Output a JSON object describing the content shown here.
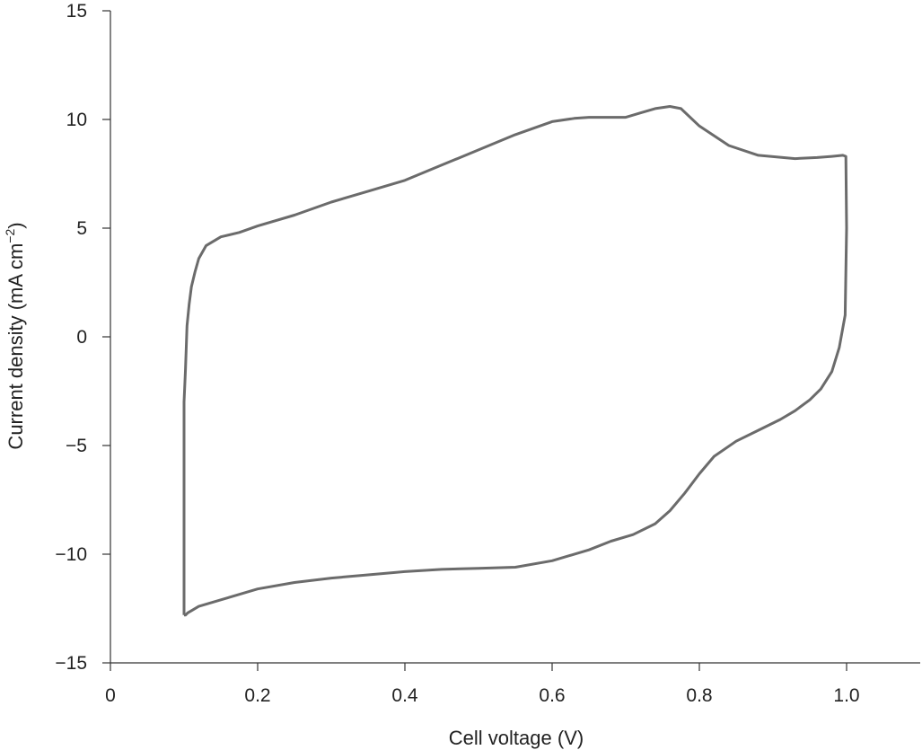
{
  "chart_data": {
    "type": "line",
    "xlabel": "Cell voltage (V)",
    "ylabel_main": "Current density (mA cm",
    "ylabel_sup": "−2",
    "ylabel_close": ")",
    "xlim": [
      0,
      1.1
    ],
    "ylim": [
      -15,
      15
    ],
    "xticks": [
      {
        "value": 0,
        "label": "0"
      },
      {
        "value": 0.2,
        "label": "0.2"
      },
      {
        "value": 0.4,
        "label": "0.4"
      },
      {
        "value": 0.6,
        "label": "0.6"
      },
      {
        "value": 0.8,
        "label": "0.8"
      },
      {
        "value": 1.0,
        "label": "1.0"
      }
    ],
    "yticks": [
      {
        "value": 15,
        "label": "15"
      },
      {
        "value": 10,
        "label": "10"
      },
      {
        "value": 5,
        "label": "5"
      },
      {
        "value": 0,
        "label": "0"
      },
      {
        "value": -5,
        "label": "−5"
      },
      {
        "value": -10,
        "label": "−10"
      },
      {
        "value": -15,
        "label": "−15"
      }
    ],
    "grid": false,
    "series": [
      {
        "color": "#6b6b6b",
        "x": [
          0.1,
          0.1,
          0.102,
          0.104,
          0.107,
          0.11,
          0.115,
          0.12,
          0.13,
          0.15,
          0.175,
          0.2,
          0.25,
          0.3,
          0.35,
          0.4,
          0.45,
          0.5,
          0.55,
          0.6,
          0.63,
          0.65,
          0.7,
          0.72,
          0.74,
          0.76,
          0.775,
          0.8,
          0.84,
          0.88,
          0.93,
          0.96,
          0.98,
          0.995,
          0.999,
          1.0,
          0.998,
          0.99,
          0.98,
          0.965,
          0.95,
          0.93,
          0.91,
          0.88,
          0.85,
          0.82,
          0.8,
          0.78,
          0.76,
          0.74,
          0.71,
          0.68,
          0.65,
          0.6,
          0.55,
          0.5,
          0.45,
          0.4,
          0.35,
          0.3,
          0.25,
          0.2,
          0.15,
          0.12,
          0.11,
          0.105,
          0.102,
          0.1
        ],
        "y": [
          -12.8,
          -3.0,
          -1.5,
          0.5,
          1.5,
          2.3,
          3.0,
          3.6,
          4.2,
          4.6,
          4.8,
          5.1,
          5.6,
          6.2,
          6.7,
          7.2,
          7.9,
          8.6,
          9.3,
          9.9,
          10.05,
          10.1,
          10.1,
          10.3,
          10.5,
          10.6,
          10.5,
          9.7,
          8.8,
          8.35,
          8.2,
          8.25,
          8.3,
          8.35,
          8.3,
          5.0,
          1.0,
          -0.5,
          -1.6,
          -2.4,
          -2.9,
          -3.4,
          -3.8,
          -4.3,
          -4.8,
          -5.5,
          -6.3,
          -7.2,
          -8.0,
          -8.6,
          -9.1,
          -9.4,
          -9.8,
          -10.3,
          -10.6,
          -10.65,
          -10.7,
          -10.8,
          -10.95,
          -11.1,
          -11.3,
          -11.6,
          -12.1,
          -12.4,
          -12.6,
          -12.7,
          -12.8,
          -12.8
        ]
      }
    ]
  }
}
